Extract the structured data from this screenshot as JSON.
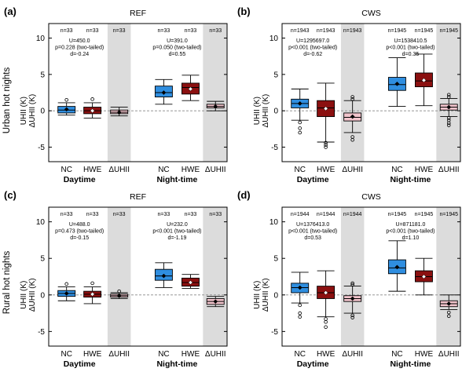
{
  "figure": {
    "row_labels": [
      "Urban hot nights",
      "Rural hot nights"
    ]
  },
  "colors": {
    "NC": "#2f8ee0",
    "HWE": "#8b1010",
    "dUHII": "#f2c4cc",
    "shade": "#dcdcdc",
    "zero_line": "#888888"
  },
  "chart_data": [
    {
      "id": "a",
      "panel_label": "(a)",
      "title": "REF",
      "type": "boxplot",
      "ylabel_lines": [
        "UHII (K)",
        "ΔUHII (K)"
      ],
      "ylim": [
        -7,
        12
      ],
      "yticks": [
        -5,
        0,
        5,
        10
      ],
      "categories": [
        "NC",
        "HWE",
        "ΔUHII",
        "NC",
        "HWE",
        "ΔUHII"
      ],
      "group_labels": [
        "Daytime",
        "Night-time"
      ],
      "n_labels": [
        "n=33",
        "n=33",
        "n=33",
        "n=33",
        "n=33",
        "n=33"
      ],
      "stats": [
        [
          "U=450.0",
          "p=0.228 (two-tailed)",
          "d=-0.24"
        ],
        [
          "U=391.0",
          "p=0.050 (two-tailed)",
          "d=0.55"
        ]
      ],
      "boxes": [
        {
          "cat": "NC",
          "whislo": -0.6,
          "q1": -0.3,
          "med": 0.1,
          "q3": 0.6,
          "whishi": 1.1,
          "mean": 0.2,
          "fliers": [
            1.5
          ]
        },
        {
          "cat": "HWE",
          "whislo": -1.0,
          "q1": -0.4,
          "med": 0.0,
          "q3": 0.5,
          "whishi": 1.1,
          "mean": 0.0,
          "fliers": [
            1.6
          ]
        },
        {
          "cat": "ΔUHII",
          "whislo": -0.7,
          "q1": -0.4,
          "med": -0.2,
          "q3": 0.1,
          "whishi": 0.5,
          "mean": -0.2,
          "fliers": []
        },
        {
          "cat": "NC",
          "whislo": 0.9,
          "q1": 1.9,
          "med": 2.5,
          "q3": 3.4,
          "whishi": 4.3,
          "mean": 2.5,
          "fliers": []
        },
        {
          "cat": "HWE",
          "whislo": 1.4,
          "q1": 2.3,
          "med": 3.2,
          "q3": 3.8,
          "whishi": 4.9,
          "mean": 3.0,
          "fliers": []
        },
        {
          "cat": "ΔUHII",
          "whislo": 0.0,
          "q1": 0.4,
          "med": 0.6,
          "q3": 0.9,
          "whishi": 1.3,
          "mean": 0.6,
          "fliers": []
        }
      ]
    },
    {
      "id": "b",
      "panel_label": "(b)",
      "title": "CWS",
      "type": "boxplot",
      "ylabel_lines": [
        "UHII (K)",
        "ΔUHII (K)"
      ],
      "ylim": [
        -7,
        12
      ],
      "yticks": [
        -5,
        0,
        5,
        10
      ],
      "categories": [
        "NC",
        "HWE",
        "ΔUHII",
        "NC",
        "HWE",
        "ΔUHII"
      ],
      "group_labels": [
        "Daytime",
        "Night-time"
      ],
      "n_labels": [
        "n=1943",
        "n=1943",
        "n=1943",
        "n=1945",
        "n=1945",
        "n=1945"
      ],
      "stats": [
        [
          "U=1295697.0",
          "p<0.001 (two-tailed)",
          "d=-0.62"
        ],
        [
          "U=1538410.5",
          "p<0.001 (two-tailed)",
          "d=0.35"
        ]
      ],
      "boxes": [
        {
          "cat": "NC",
          "whislo": -1.3,
          "q1": 0.4,
          "med": 1.0,
          "q3": 1.6,
          "whishi": 3.0,
          "mean": 1.0,
          "fliers": [
            -1.6,
            -2.4,
            -3.0
          ]
        },
        {
          "cat": "HWE",
          "whislo": -4.3,
          "q1": -0.8,
          "med": 0.4,
          "q3": 1.4,
          "whishi": 3.8,
          "mean": 0.3,
          "fliers": [
            -4.4,
            -4.7,
            -5.0
          ]
        },
        {
          "cat": "ΔUHII",
          "whislo": -3.0,
          "q1": -1.4,
          "med": -0.9,
          "q3": -0.3,
          "whishi": 1.4,
          "mean": -0.8,
          "fliers": [
            1.6,
            1.9,
            -3.6,
            -4.0
          ]
        },
        {
          "cat": "NC",
          "whislo": 0.6,
          "q1": 2.8,
          "med": 3.6,
          "q3": 4.6,
          "whishi": 7.3,
          "mean": 3.7,
          "fliers": []
        },
        {
          "cat": "HWE",
          "whislo": 0.7,
          "q1": 3.3,
          "med": 4.1,
          "q3": 5.2,
          "whishi": 7.8,
          "mean": 4.2,
          "fliers": []
        },
        {
          "cat": "ΔUHII",
          "whislo": -0.8,
          "q1": 0.1,
          "med": 0.5,
          "q3": 0.9,
          "whishi": 1.7,
          "mean": 0.5,
          "fliers": [
            -1.0,
            -1.3,
            -1.7,
            -2.0,
            1.9,
            2.2
          ]
        }
      ]
    },
    {
      "id": "c",
      "panel_label": "(c)",
      "title": "REF",
      "type": "boxplot",
      "ylabel_lines": [
        "UHII (K)",
        "ΔUHII (K)"
      ],
      "ylim": [
        -7,
        12
      ],
      "yticks": [
        -5,
        0,
        5,
        10
      ],
      "categories": [
        "NC",
        "HWE",
        "ΔUHII",
        "NC",
        "HWE",
        "ΔUHII"
      ],
      "group_labels": [
        "Daytime",
        "Night-time"
      ],
      "n_labels": [
        "n=33",
        "n=33",
        "n=33",
        "n=33",
        "n=33",
        "n=33"
      ],
      "stats": [
        [
          "U=488.0",
          "p=0.473 (two-tailed)",
          "d=-0.15"
        ],
        [
          "U=232.0",
          "p<0.001 (two-tailed)",
          "d=-1.19"
        ]
      ],
      "boxes": [
        {
          "cat": "NC",
          "whislo": -0.8,
          "q1": -0.2,
          "med": 0.2,
          "q3": 0.6,
          "whishi": 1.1,
          "mean": 0.2,
          "fliers": [
            1.5
          ]
        },
        {
          "cat": "HWE",
          "whislo": -1.2,
          "q1": -0.3,
          "med": 0.1,
          "q3": 0.5,
          "whishi": 1.1,
          "mean": 0.1,
          "fliers": [
            1.6
          ]
        },
        {
          "cat": "ΔUHII",
          "whislo": -0.5,
          "q1": -0.3,
          "med": -0.1,
          "q3": 0.1,
          "whishi": 0.3,
          "mean": -0.1,
          "fliers": [
            0.5
          ]
        },
        {
          "cat": "NC",
          "whislo": 1.0,
          "q1": 2.0,
          "med": 2.6,
          "q3": 3.5,
          "whishi": 4.4,
          "mean": 2.6,
          "fliers": []
        },
        {
          "cat": "HWE",
          "whislo": 0.9,
          "q1": 1.2,
          "med": 1.7,
          "q3": 2.3,
          "whishi": 2.8,
          "mean": 1.7,
          "fliers": []
        },
        {
          "cat": "ΔUHII",
          "whislo": -1.6,
          "q1": -1.3,
          "med": -0.9,
          "q3": -0.5,
          "whishi": -0.2,
          "mean": -0.9,
          "fliers": []
        }
      ]
    },
    {
      "id": "d",
      "panel_label": "(d)",
      "title": "CWS",
      "type": "boxplot",
      "ylabel_lines": [
        "UHII (K)",
        "ΔUHII (K)"
      ],
      "ylim": [
        -7,
        12
      ],
      "yticks": [
        -5,
        0,
        5,
        10
      ],
      "categories": [
        "NC",
        "HWE",
        "ΔUHII",
        "NC",
        "HWE",
        "ΔUHII"
      ],
      "group_labels": [
        "Daytime",
        "Night-time"
      ],
      "n_labels": [
        "n=1944",
        "n=1944",
        "n=1944",
        "n=1945",
        "n=1945",
        "n=1945"
      ],
      "stats": [
        [
          "U=1376413.0",
          "p<0.001 (two-tailed)",
          "d=0.53"
        ],
        [
          "U=871181.0",
          "p<0.001 (two-tailed)",
          "d=1.10"
        ]
      ],
      "boxes": [
        {
          "cat": "NC",
          "whislo": -1.1,
          "q1": 0.3,
          "med": 1.0,
          "q3": 1.6,
          "whishi": 3.1,
          "mean": 1.0,
          "fliers": [
            -1.4,
            -2.5,
            -3.0
          ]
        },
        {
          "cat": "HWE",
          "whislo": -3.0,
          "q1": -0.5,
          "med": 0.3,
          "q3": 1.2,
          "whishi": 3.3,
          "mean": 0.3,
          "fliers": [
            -3.3,
            -3.7,
            -4.4
          ]
        },
        {
          "cat": "ΔUHII",
          "whislo": -2.5,
          "q1": -0.9,
          "med": -0.5,
          "q3": -0.1,
          "whishi": 1.2,
          "mean": -0.5,
          "fliers": [
            1.4,
            1.6,
            -2.8,
            -3.1
          ]
        },
        {
          "cat": "NC",
          "whislo": 0.5,
          "q1": 2.9,
          "med": 3.7,
          "q3": 4.8,
          "whishi": 7.4,
          "mean": 3.8,
          "fliers": []
        },
        {
          "cat": "HWE",
          "whislo": 0.0,
          "q1": 1.8,
          "med": 2.5,
          "q3": 3.3,
          "whishi": 5.0,
          "mean": 2.5,
          "fliers": []
        },
        {
          "cat": "ΔUHII",
          "whislo": -2.0,
          "q1": -1.6,
          "med": -1.2,
          "q3": -0.8,
          "whishi": 0.0,
          "mean": -1.2,
          "fliers": [
            -2.4,
            -2.9
          ]
        }
      ]
    }
  ]
}
